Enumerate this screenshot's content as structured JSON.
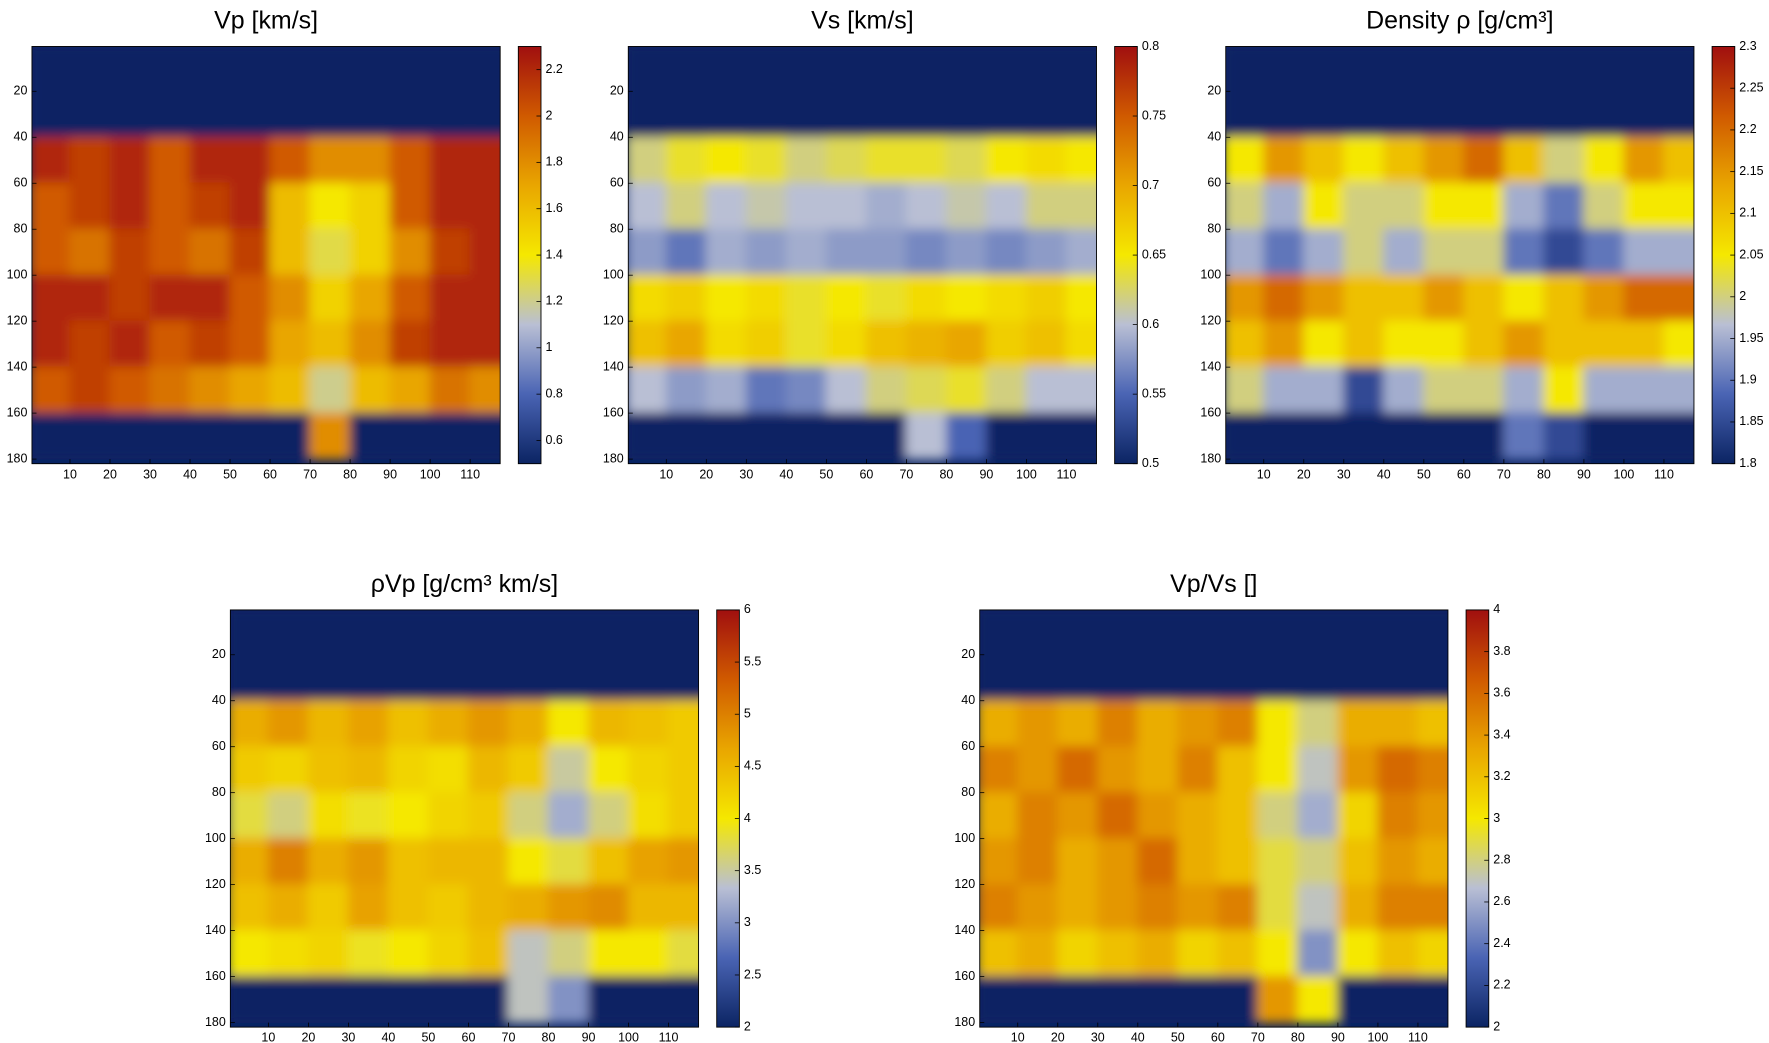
{
  "chart_data": [
    {
      "type": "heatmap",
      "title": "Vp [km/s]",
      "x": [
        5,
        15,
        25,
        35,
        45,
        55,
        65,
        75,
        85,
        95,
        105,
        115
      ],
      "y": [
        10,
        30,
        50,
        70,
        90,
        110,
        130,
        150,
        170
      ],
      "z": [
        [
          0.5,
          0.5,
          0.5,
          0.5,
          0.5,
          0.5,
          0.5,
          0.5,
          0.5,
          0.5,
          0.5,
          0.5
        ],
        [
          0.5,
          0.5,
          0.5,
          0.5,
          0.5,
          0.5,
          0.5,
          0.5,
          0.5,
          0.5,
          0.5,
          0.5
        ],
        [
          2.2,
          2.1,
          2.2,
          2.0,
          2.2,
          2.2,
          2.0,
          1.8,
          1.8,
          2.0,
          2.2,
          2.2
        ],
        [
          2.0,
          2.1,
          2.2,
          2.0,
          2.1,
          2.2,
          1.6,
          1.4,
          1.5,
          2.0,
          2.2,
          2.2
        ],
        [
          2.0,
          1.9,
          2.1,
          2.0,
          1.9,
          2.1,
          1.6,
          1.3,
          1.5,
          1.8,
          2.1,
          2.2
        ],
        [
          2.2,
          2.2,
          2.1,
          2.2,
          2.2,
          2.0,
          1.8,
          1.5,
          1.7,
          2.0,
          2.2,
          2.2
        ],
        [
          2.2,
          2.1,
          2.2,
          2.0,
          2.1,
          2.0,
          1.7,
          1.6,
          1.8,
          2.1,
          2.2,
          2.2
        ],
        [
          2.0,
          2.1,
          2.0,
          1.9,
          1.8,
          1.7,
          1.6,
          1.2,
          1.6,
          1.7,
          1.9,
          1.8
        ],
        [
          0.5,
          0.5,
          0.5,
          0.5,
          0.5,
          0.5,
          0.5,
          1.8,
          0.5,
          0.5,
          0.5,
          0.5
        ]
      ],
      "xlim": [
        0.5,
        117.5
      ],
      "ylim": [
        0.5,
        182
      ],
      "xticks": [
        10,
        20,
        30,
        40,
        50,
        60,
        70,
        80,
        90,
        100,
        110
      ],
      "yticks": [
        20,
        40,
        60,
        80,
        100,
        120,
        140,
        160,
        180
      ],
      "clim": [
        0.5,
        2.3
      ],
      "cticks": [
        0.6,
        0.8,
        1,
        1.2,
        1.4,
        1.6,
        1.8,
        2,
        2.2
      ],
      "colormap": [
        "#0b2463",
        "#4a64b4",
        "#b9bfd4",
        "#f5e800",
        "#e9a600",
        "#d05a00",
        "#a00f0f"
      ]
    },
    {
      "type": "heatmap",
      "title": "Vs [km/s]",
      "x": [
        5,
        15,
        25,
        35,
        45,
        55,
        65,
        75,
        85,
        95,
        105,
        115
      ],
      "y": [
        10,
        30,
        50,
        70,
        90,
        110,
        130,
        150,
        170
      ],
      "z": [
        [
          0.5,
          0.5,
          0.5,
          0.5,
          0.5,
          0.5,
          0.5,
          0.5,
          0.5,
          0.5,
          0.5,
          0.5
        ],
        [
          0.5,
          0.5,
          0.5,
          0.5,
          0.5,
          0.5,
          0.5,
          0.5,
          0.5,
          0.5,
          0.5,
          0.5
        ],
        [
          0.62,
          0.64,
          0.65,
          0.64,
          0.62,
          0.63,
          0.64,
          0.64,
          0.63,
          0.65,
          0.66,
          0.65
        ],
        [
          0.6,
          0.62,
          0.6,
          0.61,
          0.6,
          0.6,
          0.59,
          0.6,
          0.61,
          0.6,
          0.62,
          0.62
        ],
        [
          0.58,
          0.56,
          0.59,
          0.58,
          0.59,
          0.58,
          0.58,
          0.57,
          0.58,
          0.57,
          0.58,
          0.59
        ],
        [
          0.66,
          0.67,
          0.65,
          0.66,
          0.64,
          0.65,
          0.64,
          0.66,
          0.65,
          0.66,
          0.67,
          0.65
        ],
        [
          0.68,
          0.7,
          0.66,
          0.67,
          0.64,
          0.66,
          0.68,
          0.69,
          0.7,
          0.67,
          0.68,
          0.66
        ],
        [
          0.6,
          0.58,
          0.59,
          0.56,
          0.57,
          0.6,
          0.62,
          0.63,
          0.64,
          0.62,
          0.6,
          0.6
        ],
        [
          0.5,
          0.5,
          0.5,
          0.5,
          0.5,
          0.5,
          0.5,
          0.6,
          0.55,
          0.5,
          0.5,
          0.5
        ]
      ],
      "xlim": [
        0.5,
        117.5
      ],
      "ylim": [
        0.5,
        182
      ],
      "xticks": [
        10,
        20,
        30,
        40,
        50,
        60,
        70,
        80,
        90,
        100,
        110
      ],
      "yticks": [
        20,
        40,
        60,
        80,
        100,
        120,
        140,
        160,
        180
      ],
      "clim": [
        0.5,
        0.8
      ],
      "cticks": [
        0.5,
        0.55,
        0.6,
        0.65,
        0.7,
        0.75,
        0.8
      ],
      "colormap": [
        "#0b2463",
        "#4a64b4",
        "#b9bfd4",
        "#f5e800",
        "#e9a600",
        "#d05a00",
        "#a00f0f"
      ]
    },
    {
      "type": "heatmap",
      "title": "Density ρ [g/cm³]",
      "x": [
        5,
        15,
        25,
        35,
        45,
        55,
        65,
        75,
        85,
        95,
        105,
        115
      ],
      "y": [
        10,
        30,
        50,
        70,
        90,
        110,
        130,
        150,
        170
      ],
      "z": [
        [
          1.8,
          1.8,
          1.8,
          1.8,
          1.8,
          1.8,
          1.8,
          1.8,
          1.8,
          1.8,
          1.8,
          1.8
        ],
        [
          1.8,
          1.8,
          1.8,
          1.8,
          1.8,
          1.8,
          1.8,
          1.8,
          1.8,
          1.8,
          1.8,
          1.8
        ],
        [
          2.05,
          2.15,
          2.1,
          2.05,
          2.1,
          2.15,
          2.2,
          2.1,
          2.0,
          2.05,
          2.15,
          2.1
        ],
        [
          2.0,
          1.95,
          2.05,
          2.0,
          2.0,
          2.05,
          2.05,
          1.95,
          1.9,
          2.0,
          2.05,
          2.05
        ],
        [
          1.95,
          1.9,
          1.95,
          2.0,
          1.95,
          2.0,
          2.0,
          1.9,
          1.85,
          1.9,
          1.95,
          1.95
        ],
        [
          2.15,
          2.2,
          2.15,
          2.1,
          2.1,
          2.15,
          2.1,
          2.05,
          2.1,
          2.15,
          2.2,
          2.2
        ],
        [
          2.1,
          2.15,
          2.05,
          2.1,
          2.05,
          2.05,
          2.1,
          2.15,
          2.1,
          2.1,
          2.1,
          2.05
        ],
        [
          2.0,
          1.95,
          1.95,
          1.85,
          1.95,
          2.0,
          2.0,
          1.95,
          2.05,
          1.95,
          1.95,
          1.95
        ],
        [
          1.8,
          1.8,
          1.8,
          1.8,
          1.8,
          1.8,
          1.8,
          1.9,
          1.85,
          1.8,
          1.8,
          1.8
        ]
      ],
      "xlim": [
        0.5,
        117.5
      ],
      "ylim": [
        0.5,
        182
      ],
      "xticks": [
        10,
        20,
        30,
        40,
        50,
        60,
        70,
        80,
        90,
        100,
        110
      ],
      "yticks": [
        20,
        40,
        60,
        80,
        100,
        120,
        140,
        160,
        180
      ],
      "clim": [
        1.8,
        2.3
      ],
      "cticks": [
        1.8,
        1.85,
        1.9,
        1.95,
        2,
        2.05,
        2.1,
        2.15,
        2.2,
        2.25,
        2.3
      ],
      "colormap": [
        "#0b2463",
        "#4a64b4",
        "#b9bfd4",
        "#f5e800",
        "#e9a600",
        "#d05a00",
        "#a00f0f"
      ]
    },
    {
      "type": "heatmap",
      "title": "ρVp [g/cm³ km/s]",
      "x": [
        5,
        15,
        25,
        35,
        45,
        55,
        65,
        75,
        85,
        95,
        105,
        115
      ],
      "y": [
        10,
        30,
        50,
        70,
        90,
        110,
        130,
        150,
        170
      ],
      "z": [
        [
          2,
          2,
          2,
          2,
          2,
          2,
          2,
          2,
          2,
          2,
          2,
          2
        ],
        [
          2,
          2,
          2,
          2,
          2,
          2,
          2,
          2,
          2,
          2,
          2,
          2
        ],
        [
          4.6,
          4.8,
          4.5,
          4.7,
          4.4,
          4.6,
          4.8,
          4.6,
          4.0,
          4.5,
          4.4,
          4.3
        ],
        [
          4.3,
          4.2,
          4.4,
          4.5,
          4.2,
          4.1,
          4.5,
          4.3,
          3.5,
          4.0,
          4.2,
          4.3
        ],
        [
          3.8,
          3.6,
          4.1,
          3.9,
          4.0,
          4.2,
          4.3,
          3.6,
          3.2,
          3.6,
          4.1,
          4.3
        ],
        [
          4.6,
          5.0,
          4.6,
          4.8,
          4.4,
          4.5,
          4.5,
          4.0,
          3.8,
          4.4,
          4.7,
          4.8
        ],
        [
          4.4,
          4.6,
          4.3,
          4.7,
          4.4,
          4.3,
          4.5,
          4.6,
          4.8,
          4.9,
          4.5,
          4.5
        ],
        [
          4.0,
          4.1,
          4.2,
          3.9,
          4.0,
          4.2,
          4.4,
          3.4,
          3.6,
          4.0,
          4.0,
          3.8
        ],
        [
          2,
          2,
          2,
          2,
          2,
          2,
          2,
          3.4,
          3.0,
          2,
          2,
          2
        ]
      ],
      "xlim": [
        0.5,
        117.5
      ],
      "ylim": [
        0.5,
        182
      ],
      "xticks": [
        10,
        20,
        30,
        40,
        50,
        60,
        70,
        80,
        90,
        100,
        110
      ],
      "yticks": [
        20,
        40,
        60,
        80,
        100,
        120,
        140,
        160,
        180
      ],
      "clim": [
        2,
        6
      ],
      "cticks": [
        2,
        2.5,
        3,
        3.5,
        4,
        4.5,
        5,
        5.5,
        6
      ],
      "colormap": [
        "#0b2463",
        "#4a64b4",
        "#b9bfd4",
        "#f5e800",
        "#e9a600",
        "#d05a00",
        "#a00f0f"
      ]
    },
    {
      "type": "heatmap",
      "title": "Vp/Vs []",
      "x": [
        5,
        15,
        25,
        35,
        45,
        55,
        65,
        75,
        85,
        95,
        105,
        115
      ],
      "y": [
        10,
        30,
        50,
        70,
        90,
        110,
        130,
        150,
        170
      ],
      "z": [
        [
          2,
          2,
          2,
          2,
          2,
          2,
          2,
          2,
          2,
          2,
          2,
          2
        ],
        [
          2,
          2,
          2,
          2,
          2,
          2,
          2,
          2,
          2,
          2,
          2,
          2
        ],
        [
          3.3,
          3.4,
          3.3,
          3.5,
          3.3,
          3.4,
          3.5,
          3.0,
          2.8,
          3.3,
          3.3,
          3.2
        ],
        [
          3.5,
          3.4,
          3.6,
          3.4,
          3.3,
          3.5,
          3.2,
          3.0,
          2.7,
          3.4,
          3.6,
          3.5
        ],
        [
          3.3,
          3.5,
          3.4,
          3.6,
          3.4,
          3.3,
          3.2,
          2.8,
          2.6,
          3.1,
          3.5,
          3.4
        ],
        [
          3.4,
          3.5,
          3.3,
          3.4,
          3.6,
          3.3,
          3.2,
          2.9,
          2.8,
          3.2,
          3.4,
          3.3
        ],
        [
          3.5,
          3.4,
          3.3,
          3.4,
          3.5,
          3.4,
          3.5,
          2.9,
          2.7,
          3.3,
          3.5,
          3.5
        ],
        [
          3.2,
          3.3,
          3.1,
          3.2,
          3.3,
          3.1,
          3.2,
          3.0,
          2.5,
          3.0,
          3.2,
          3.1
        ],
        [
          2,
          2,
          2,
          2,
          2,
          2,
          2,
          3.4,
          3.0,
          2,
          2,
          2
        ]
      ],
      "xlim": [
        0.5,
        117.5
      ],
      "ylim": [
        0.5,
        182
      ],
      "xticks": [
        10,
        20,
        30,
        40,
        50,
        60,
        70,
        80,
        90,
        100,
        110
      ],
      "yticks": [
        20,
        40,
        60,
        80,
        100,
        120,
        140,
        160,
        180
      ],
      "clim": [
        2,
        4
      ],
      "cticks": [
        2,
        2.2,
        2.4,
        2.6,
        2.8,
        3,
        3.2,
        3.4,
        3.6,
        3.8,
        4
      ],
      "colormap": [
        "#0b2463",
        "#4a64b4",
        "#b9bfd4",
        "#f5e800",
        "#e9a600",
        "#d05a00",
        "#a00f0f"
      ]
    }
  ]
}
